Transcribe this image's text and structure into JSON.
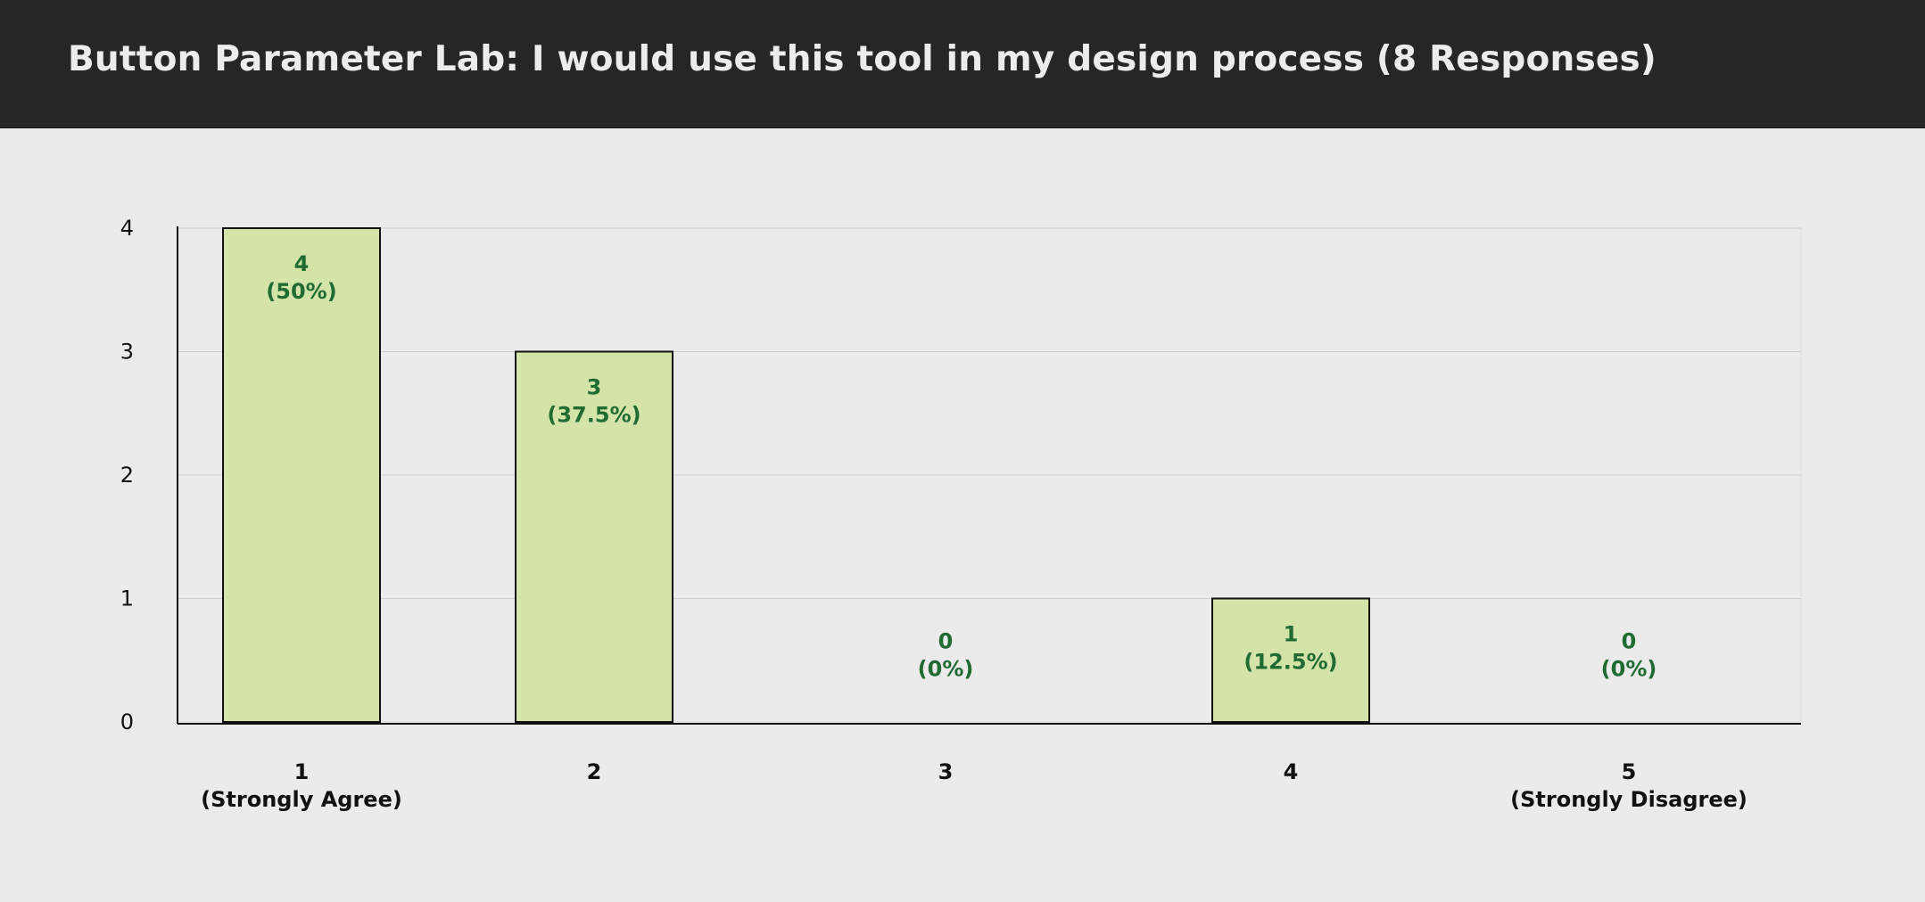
{
  "header": {
    "title": "Button Parameter Lab: I would use this tool in my design process (8 Responses)"
  },
  "colors": {
    "header_bg": "#262626",
    "background": "#ebebeb",
    "bar_fill": "#d4e4a8",
    "bar_stroke": "#111111",
    "value_label": "#1f6b32",
    "grid": "#cccccc"
  },
  "chart_data": {
    "type": "bar",
    "title": "Button Parameter Lab: I would use this tool in my design process (8 Responses)",
    "categories": [
      {
        "label": "1",
        "sublabel": "(Strongly Agree)"
      },
      {
        "label": "2",
        "sublabel": ""
      },
      {
        "label": "3",
        "sublabel": ""
      },
      {
        "label": "4",
        "sublabel": ""
      },
      {
        "label": "5",
        "sublabel": "(Strongly Disagree)"
      }
    ],
    "values": [
      4,
      3,
      0,
      1,
      0
    ],
    "data_labels": [
      {
        "count": "4",
        "percent": "(50%)"
      },
      {
        "count": "3",
        "percent": "(37.5%)"
      },
      {
        "count": "0",
        "percent": "(0%)"
      },
      {
        "count": "1",
        "percent": "(12.5%)"
      },
      {
        "count": "0",
        "percent": "(0%)"
      }
    ],
    "yticks": [
      "0",
      "1",
      "2",
      "3",
      "4"
    ],
    "ylim": [
      0,
      4
    ],
    "xlabel": "",
    "ylabel": "",
    "grid": true
  }
}
